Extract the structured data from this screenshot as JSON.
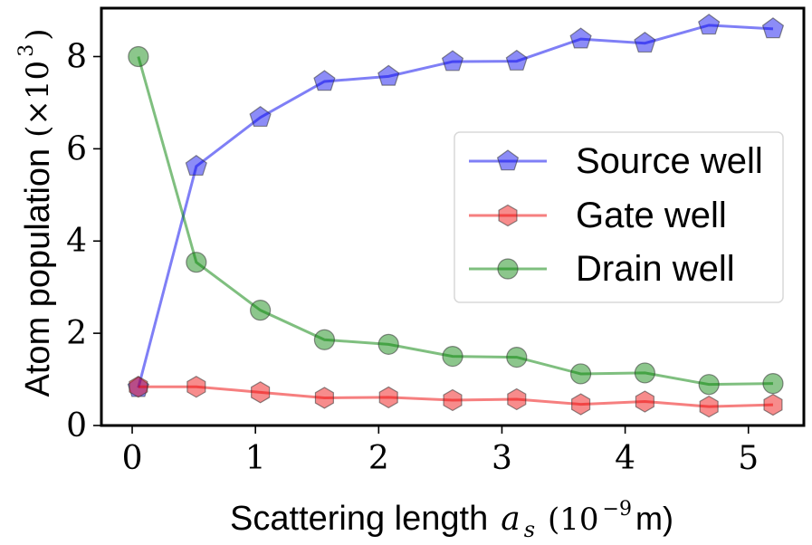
{
  "chart_data": {
    "type": "line",
    "xlabel_prefix": "Scattering length",
    "xlabel_symbol": "a",
    "xlabel_subscript": "s",
    "xlabel_unit_open": "(10",
    "xlabel_unit_exp": "−9",
    "xlabel_unit_close": " m)",
    "ylabel_prefix": "Atom population",
    "ylabel_unit_open": "(×10",
    "ylabel_unit_exp": "3",
    "ylabel_unit_close": ")",
    "xlim": [
      -0.25,
      5.45
    ],
    "ylim": [
      0,
      9.05
    ],
    "xticks": [
      0,
      1,
      2,
      3,
      4,
      5
    ],
    "yticks": [
      0,
      2,
      4,
      6,
      8
    ],
    "x": [
      0.05,
      0.52,
      1.04,
      1.56,
      2.08,
      2.6,
      3.12,
      3.64,
      4.16,
      4.68,
      5.2
    ],
    "series": [
      {
        "name": "Source well",
        "color": "#0000ee",
        "marker": "pentagon",
        "values": [
          0.82,
          5.62,
          6.68,
          7.46,
          7.57,
          7.89,
          7.9,
          8.38,
          8.29,
          8.68,
          8.6
        ]
      },
      {
        "name": "Gate well",
        "color": "#ee0000",
        "marker": "hexagon",
        "values": [
          0.84,
          0.84,
          0.72,
          0.6,
          0.61,
          0.55,
          0.57,
          0.46,
          0.52,
          0.41,
          0.45
        ]
      },
      {
        "name": "Drain well",
        "color": "#008000",
        "marker": "circle",
        "values": [
          8.0,
          3.54,
          2.5,
          1.86,
          1.76,
          1.5,
          1.48,
          1.12,
          1.14,
          0.89,
          0.91
        ]
      }
    ],
    "legend_position": "center-right",
    "grid": false
  }
}
